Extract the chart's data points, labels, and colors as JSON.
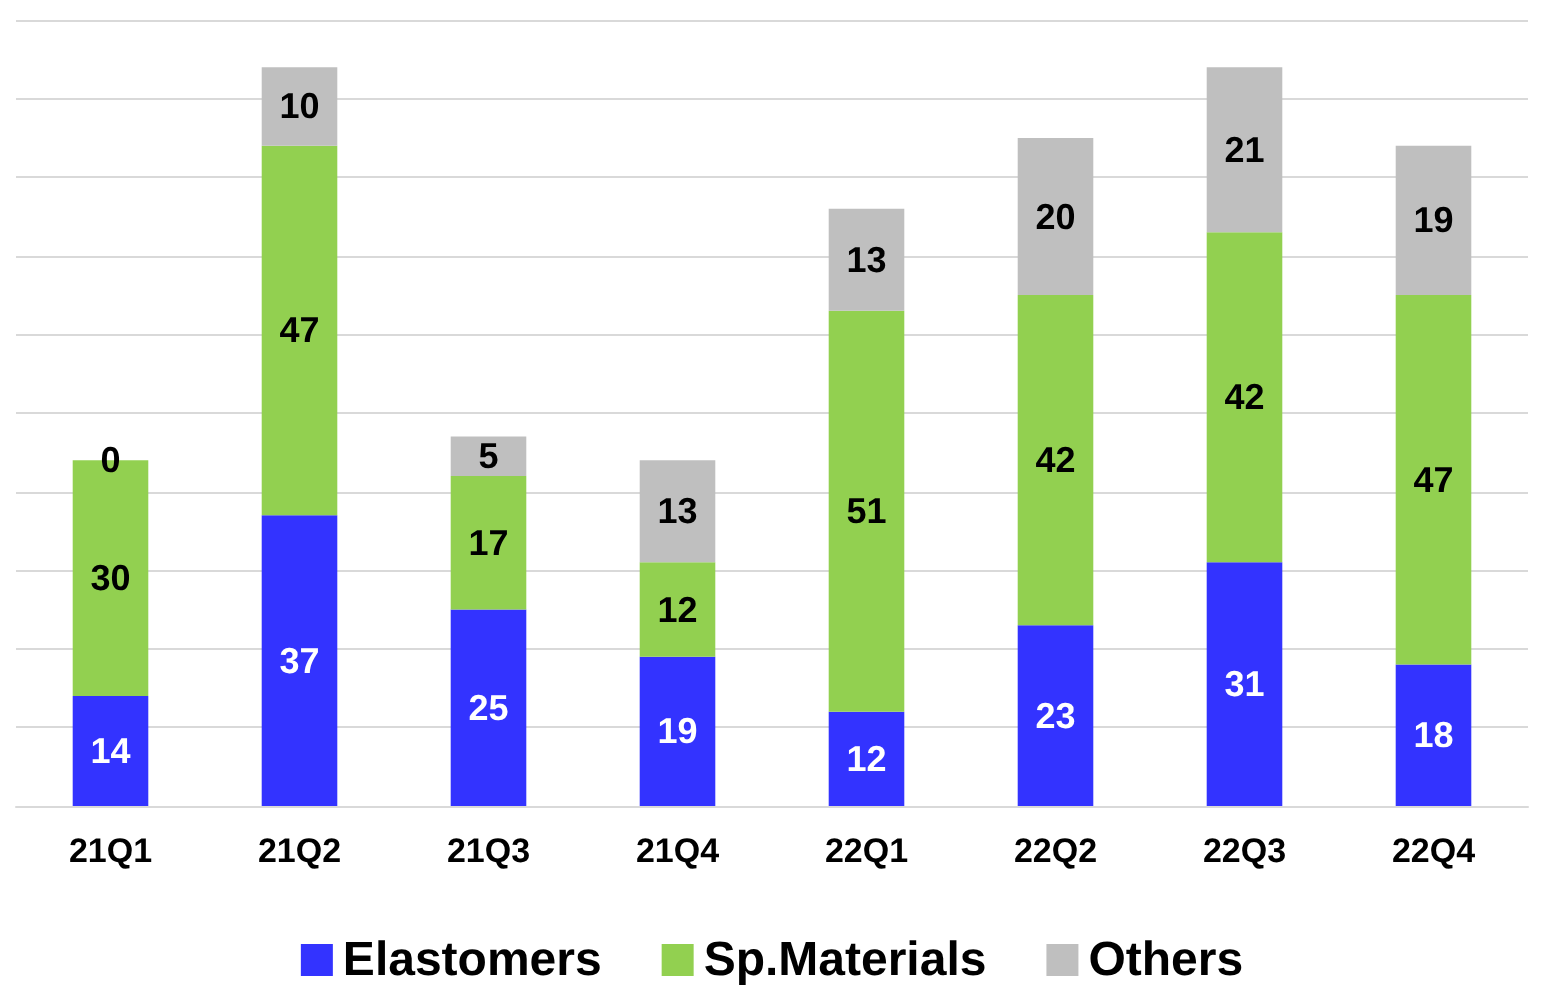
{
  "chart_data": {
    "type": "bar",
    "stacked": true,
    "data_labels": true,
    "categories": [
      "21Q1",
      "21Q2",
      "21Q3",
      "21Q4",
      "22Q1",
      "22Q2",
      "22Q3",
      "22Q4"
    ],
    "series": [
      {
        "name": "Elastomers",
        "color": "#3333ff",
        "values": [
          14,
          37,
          25,
          19,
          12,
          23,
          31,
          18
        ]
      },
      {
        "name": "Sp.Materials",
        "color": "#92d050",
        "values": [
          30,
          47,
          17,
          12,
          51,
          42,
          42,
          47
        ]
      },
      {
        "name": "Others",
        "color": "#bfbfbf",
        "values": [
          0,
          10,
          5,
          13,
          13,
          20,
          21,
          19
        ]
      }
    ],
    "ylim": [
      0,
      100
    ],
    "yticks": [
      {
        "value": 0,
        "label": null
      },
      {
        "value": 10,
        "label": null
      },
      {
        "value": 20,
        "label": null
      },
      {
        "value": 30,
        "label": null
      },
      {
        "value": 40,
        "label": null
      },
      {
        "value": 50,
        "label": null
      },
      {
        "value": 60,
        "label": null
      },
      {
        "value": 70,
        "label": null
      },
      {
        "value": 80,
        "label": null
      },
      {
        "value": 90,
        "label": null
      },
      {
        "value": 100,
        "label": null
      }
    ],
    "tick_labels": "x",
    "grid": "y",
    "legend": "bottom"
  }
}
